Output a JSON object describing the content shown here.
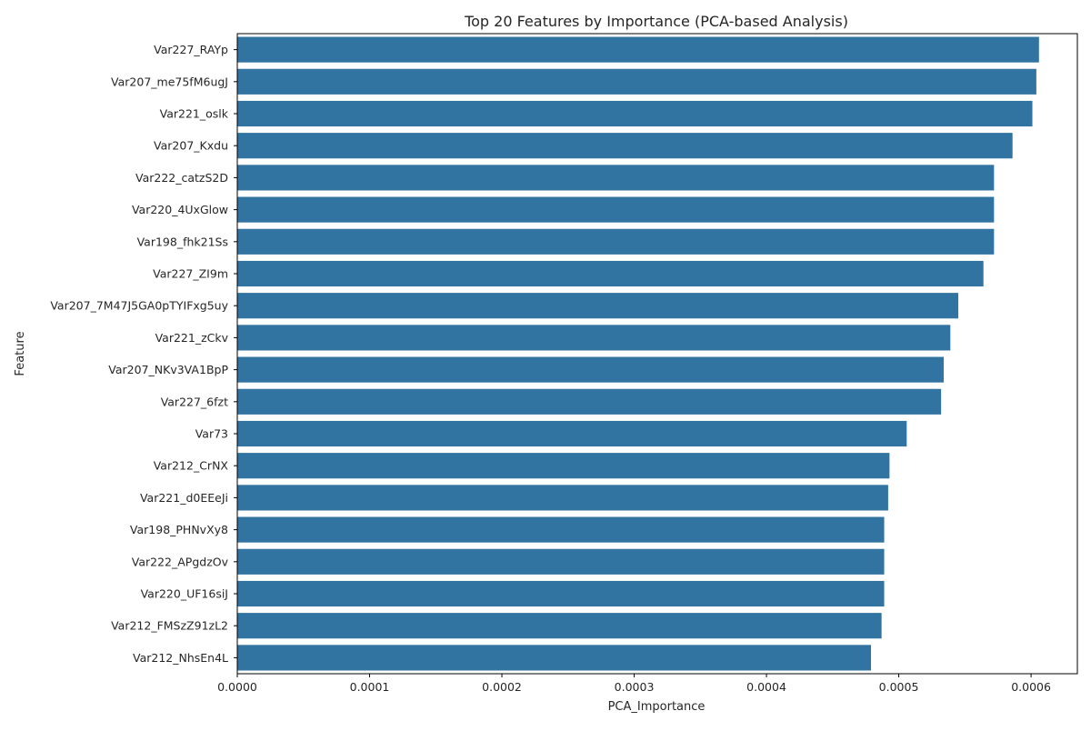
{
  "chart_data": {
    "type": "bar",
    "orientation": "horizontal",
    "title": "Top 20 Features by Importance (PCA-based Analysis)",
    "xlabel": "PCA_Importance",
    "ylabel": "Feature",
    "xlim": [
      0,
      0.000635
    ],
    "xticks": [
      0,
      0.0001,
      0.0002,
      0.0003,
      0.0004,
      0.0005,
      0.0006
    ],
    "xtick_labels": [
      "0.0000",
      "0.0001",
      "0.0002",
      "0.0003",
      "0.0004",
      "0.0005",
      "0.0006"
    ],
    "bar_color": "#3274a1",
    "grid": false,
    "categories": [
      "Var227_RAYp",
      "Var207_me75fM6ugJ",
      "Var221_oslk",
      "Var207_Kxdu",
      "Var222_catzS2D",
      "Var220_4UxGlow",
      "Var198_fhk21Ss",
      "Var227_ZI9m",
      "Var207_7M47J5GA0pTYIFxg5uy",
      "Var221_zCkv",
      "Var207_NKv3VA1BpP",
      "Var227_6fzt",
      "Var73",
      "Var212_CrNX",
      "Var221_d0EEeJi",
      "Var198_PHNvXy8",
      "Var222_APgdzOv",
      "Var220_UF16siJ",
      "Var212_FMSzZ91zL2",
      "Var212_NhsEn4L"
    ],
    "values": [
      0.000606,
      0.000604,
      0.000601,
      0.000586,
      0.000572,
      0.000572,
      0.000572,
      0.000564,
      0.000545,
      0.000539,
      0.000534,
      0.000532,
      0.000506,
      0.000493,
      0.000492,
      0.000489,
      0.000489,
      0.000489,
      0.000487,
      0.000479
    ]
  }
}
